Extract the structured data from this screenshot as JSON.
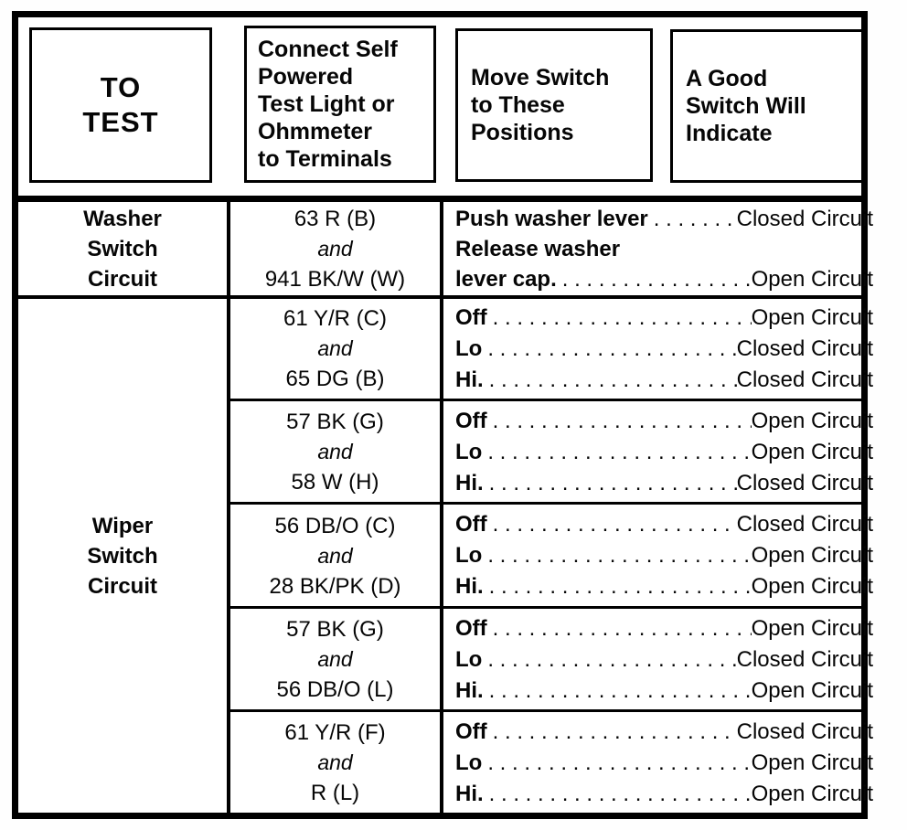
{
  "page": {
    "background": "#ffffff",
    "ink": "#000000"
  },
  "table": {
    "leader_dots": ". . . . . . . . . . . . . . . . . . . . . . . . . . . . . . . . . . .",
    "headers": {
      "to_test": "TO\nTEST",
      "connect": "Connect Self\nPowered\nTest Light or\nOhmmeter\nto Terminals",
      "move": "Move Switch\nto These\nPositions",
      "good": "A Good\nSwitch Will\nIndicate"
    },
    "washer": {
      "label": "Washer\nSwitch\nCircuit",
      "terminals": {
        "a": "63 R (B)",
        "conj": "and",
        "b": "941 BK/W (W)"
      },
      "lines": [
        {
          "position": "Push washer lever",
          "result": "Closed Circuit"
        },
        {
          "position": "Release washer",
          "result": ""
        },
        {
          "position": "lever cap.",
          "result": "Open Circuit"
        }
      ]
    },
    "wiper": {
      "label": "Wiper\nSwitch\nCircuit",
      "subrows": [
        {
          "terminals": {
            "a": "61 Y/R (C)",
            "conj": "and",
            "b": "65 DG (B)"
          },
          "lines": [
            {
              "position": "Off",
              "result": "Open Circuit"
            },
            {
              "position": "Lo",
              "result": "Closed Circuit"
            },
            {
              "position": "Hi.",
              "result": "Closed Circuit"
            }
          ]
        },
        {
          "terminals": {
            "a": "57 BK (G)",
            "conj": "and",
            "b": "58 W (H)"
          },
          "lines": [
            {
              "position": "Off",
              "result": "Open Circuit"
            },
            {
              "position": "Lo",
              "result": "Open Circuit"
            },
            {
              "position": "Hi.",
              "result": "Closed Circuit"
            }
          ]
        },
        {
          "terminals": {
            "a": "56 DB/O (C)",
            "conj": "and",
            "b": "28 BK/PK (D)"
          },
          "lines": [
            {
              "position": "Off",
              "result": "Closed Circuit"
            },
            {
              "position": "Lo",
              "result": "Open Circuit"
            },
            {
              "position": "Hi.",
              "result": "Open Circuit"
            }
          ]
        },
        {
          "terminals": {
            "a": "57 BK (G)",
            "conj": "and",
            "b": "56 DB/O (L)"
          },
          "lines": [
            {
              "position": "Off",
              "result": "Open Circuit"
            },
            {
              "position": "Lo",
              "result": "Closed Circuit"
            },
            {
              "position": "Hi.",
              "result": "Open Circuit"
            }
          ]
        },
        {
          "terminals": {
            "a": "61 Y/R (F)",
            "conj": "and",
            "b": "R (L)"
          },
          "lines": [
            {
              "position": "Off",
              "result": "Closed Circuit"
            },
            {
              "position": "Lo",
              "result": "Open Circuit"
            },
            {
              "position": "Hi.",
              "result": "Open Circuit"
            }
          ]
        }
      ]
    }
  }
}
